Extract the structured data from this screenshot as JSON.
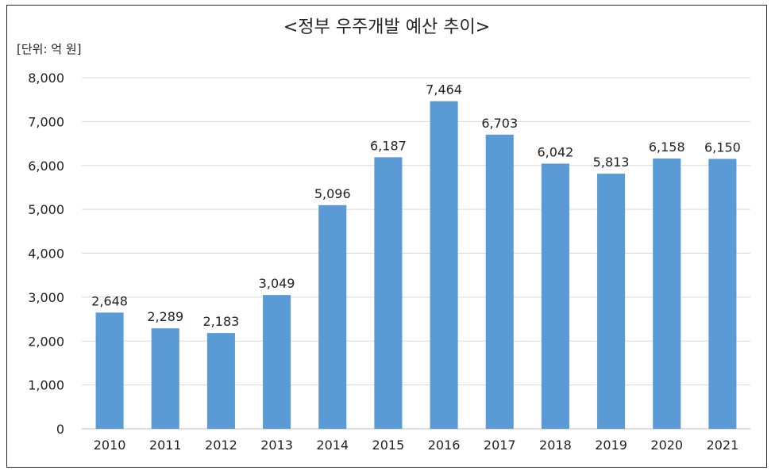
{
  "chart_data": {
    "type": "bar",
    "title": "<정부 우주개발 예산 추이>",
    "unit_label": "[단위: 억 원]",
    "xlabel": "",
    "ylabel": "",
    "categories": [
      "2010",
      "2011",
      "2012",
      "2013",
      "2014",
      "2015",
      "2016",
      "2017",
      "2018",
      "2019",
      "2020",
      "2021"
    ],
    "values": [
      2648,
      2289,
      2183,
      3049,
      5096,
      6187,
      7464,
      6703,
      6042,
      5813,
      6158,
      6150
    ],
    "value_labels": [
      "2,648",
      "2,289",
      "2,183",
      "3,049",
      "5,096",
      "6,187",
      "7,464",
      "6,703",
      "6,042",
      "5,813",
      "6,158",
      "6,150"
    ],
    "ylim": [
      0,
      8000
    ],
    "yticks": [
      0,
      1000,
      2000,
      3000,
      4000,
      5000,
      6000,
      7000,
      8000
    ],
    "ytick_labels": [
      "0",
      "1,000",
      "2,000",
      "3,000",
      "4,000",
      "5,000",
      "6,000",
      "7,000",
      "8,000"
    ],
    "grid": true,
    "legend": "none",
    "bar_color": "#5b9bd5"
  }
}
